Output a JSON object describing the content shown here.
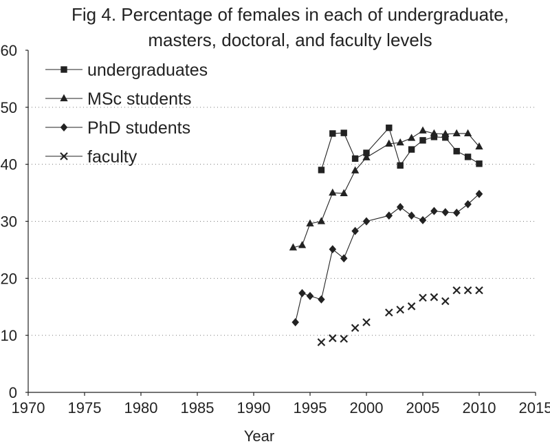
{
  "chart_data": {
    "type": "line",
    "title_lines": [
      "Fig 4. Percentage of females in each of undergraduate,",
      "masters, doctoral, and faculty levels"
    ],
    "xlabel": "Year",
    "ylabel": "",
    "xlim": [
      1970,
      2015
    ],
    "ylim": [
      0,
      60
    ],
    "xticks": [
      1970,
      1975,
      1980,
      1985,
      1990,
      1995,
      2000,
      2005,
      2010,
      2015
    ],
    "yticks": [
      0,
      10,
      20,
      30,
      40,
      50,
      60
    ],
    "grid": true,
    "legend_position": "top-left",
    "series": [
      {
        "name": "undergraduates",
        "marker": "square",
        "points": [
          [
            1996,
            39.0
          ],
          [
            1997,
            45.4
          ],
          [
            1998,
            45.5
          ],
          [
            1999,
            41.0
          ],
          [
            2000,
            42.0
          ],
          [
            2002,
            46.4
          ],
          [
            2003,
            39.8
          ],
          [
            2004,
            42.6
          ],
          [
            2005,
            44.2
          ],
          [
            2006,
            44.8
          ],
          [
            2007,
            44.7
          ],
          [
            2008,
            42.3
          ],
          [
            2009,
            41.3
          ],
          [
            2010,
            40.1
          ]
        ]
      },
      {
        "name": "MSc students",
        "marker": "triangle",
        "points": [
          [
            1993.5,
            25.4
          ],
          [
            1994.3,
            25.8
          ],
          [
            1995,
            29.6
          ],
          [
            1996,
            30.0
          ],
          [
            1997,
            35.0
          ],
          [
            1998,
            34.9
          ],
          [
            1999,
            38.9
          ],
          [
            2000,
            41.2
          ],
          [
            2002,
            43.6
          ],
          [
            2003,
            43.8
          ],
          [
            2004,
            44.6
          ],
          [
            2005,
            45.9
          ],
          [
            2006,
            45.4
          ],
          [
            2007,
            45.3
          ],
          [
            2008,
            45.4
          ],
          [
            2009,
            45.4
          ],
          [
            2010,
            43.1
          ]
        ]
      },
      {
        "name": "PhD students",
        "marker": "diamond",
        "points": [
          [
            1993.7,
            12.3
          ],
          [
            1994.3,
            17.4
          ],
          [
            1995,
            16.9
          ],
          [
            1996,
            16.3
          ],
          [
            1997,
            25.1
          ],
          [
            1998,
            23.5
          ],
          [
            1999,
            28.3
          ],
          [
            2000,
            30.0
          ],
          [
            2002,
            31.0
          ],
          [
            2003,
            32.5
          ],
          [
            2004,
            31.0
          ],
          [
            2005,
            30.2
          ],
          [
            2006,
            31.8
          ],
          [
            2007,
            31.6
          ],
          [
            2008,
            31.5
          ],
          [
            2009,
            33.0
          ],
          [
            2010,
            34.8
          ]
        ]
      },
      {
        "name": "faculty",
        "marker": "x",
        "points": [
          [
            1996,
            8.8
          ],
          [
            1997,
            9.5
          ],
          [
            1998,
            9.4
          ],
          [
            1999,
            11.3
          ],
          [
            2000,
            12.3
          ],
          [
            2002,
            14.0
          ],
          [
            2003,
            14.5
          ],
          [
            2004,
            15.1
          ],
          [
            2005,
            16.6
          ],
          [
            2006,
            16.7
          ],
          [
            2007,
            16.0
          ],
          [
            2008,
            17.9
          ],
          [
            2009,
            17.9
          ],
          [
            2010,
            17.9
          ]
        ]
      }
    ]
  }
}
